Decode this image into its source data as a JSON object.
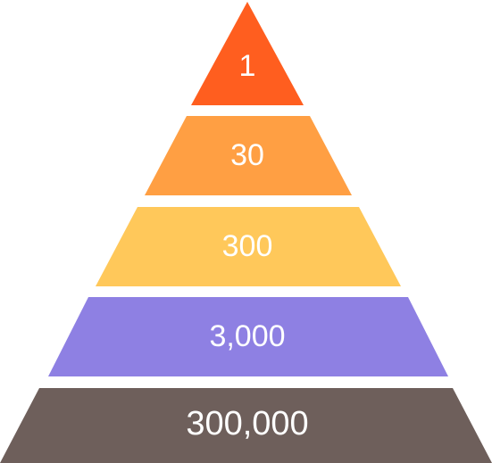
{
  "pyramid": {
    "tiers": [
      {
        "label": "1",
        "color": "#FF5E1F"
      },
      {
        "label": "30",
        "color": "#FF9F43"
      },
      {
        "label": "300",
        "color": "#FFC85A"
      },
      {
        "label": "3,000",
        "color": "#8E80E3"
      },
      {
        "label": "300,000",
        "color": "#6E5F5B"
      }
    ]
  }
}
